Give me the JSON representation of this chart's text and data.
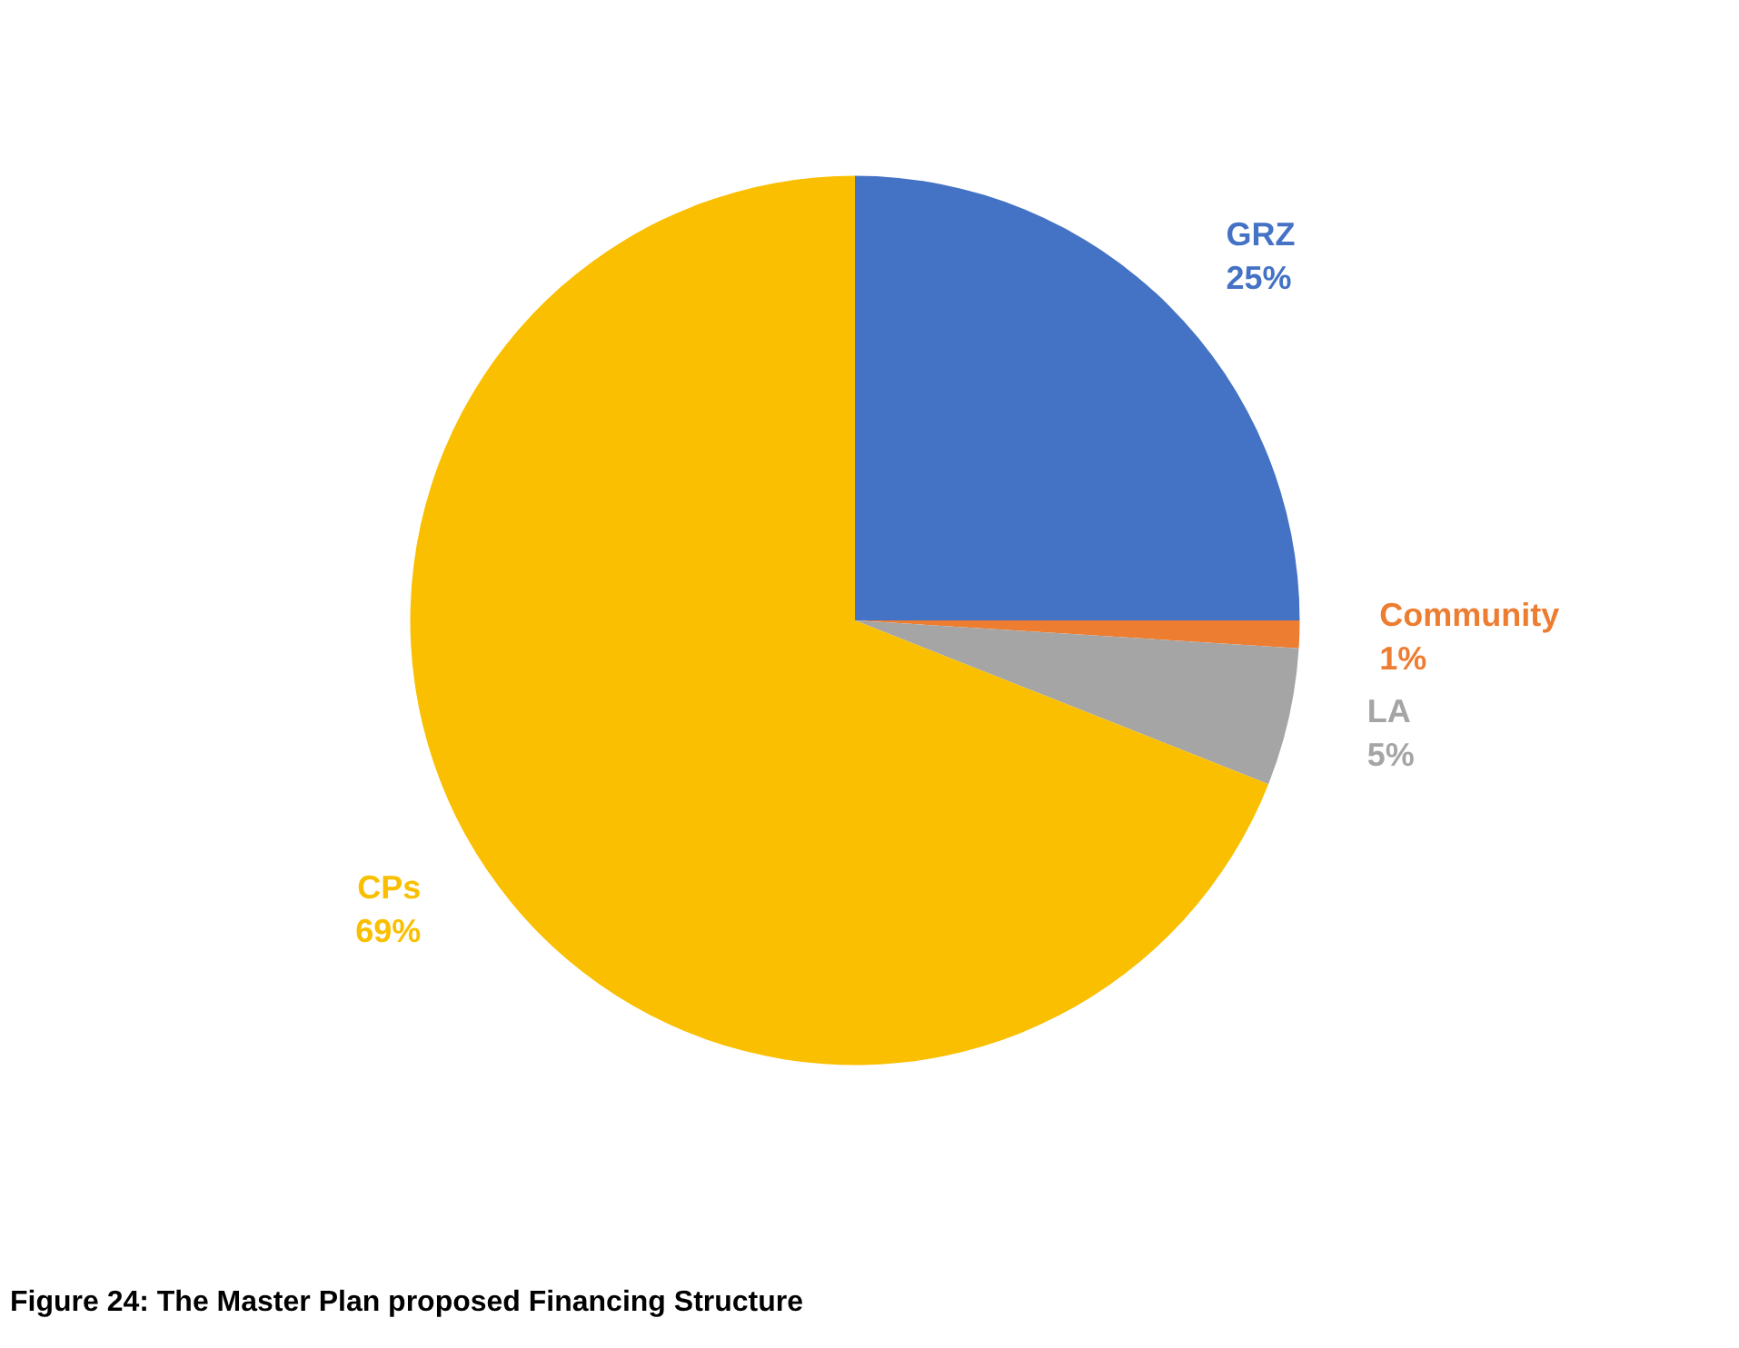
{
  "chart_data": {
    "type": "pie",
    "annotations": [
      "Figure 24: The Master Plan proposed Financing Structure"
    ],
    "categories": [
      "GRZ",
      "Community",
      "LA",
      "CPs"
    ],
    "values": [
      25,
      1,
      5,
      69
    ],
    "value_labels": [
      "25%",
      "1%",
      "5%",
      "69%"
    ],
    "colors": [
      "#4472c4",
      "#ed7d31",
      "#a5a5a5",
      "#f9bf00"
    ]
  }
}
